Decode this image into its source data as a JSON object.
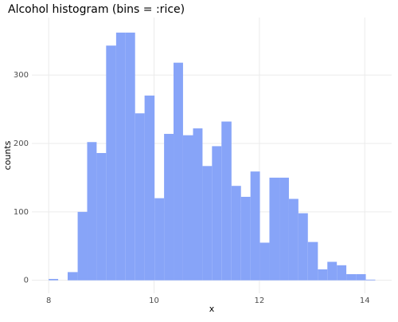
{
  "chart_data": {
    "type": "histogram",
    "title": "Alcohol histogram (bins = :rice)",
    "x_label": "x",
    "y_label": "counts",
    "bins": [
      8.0,
      8.18,
      8.36,
      8.55,
      8.73,
      8.91,
      9.09,
      9.28,
      9.46,
      9.64,
      9.82,
      10.01,
      10.19,
      10.37,
      10.55,
      10.74,
      10.92,
      11.1,
      11.28,
      11.47,
      11.65,
      11.83,
      12.01,
      12.19,
      12.38,
      12.56,
      12.74,
      12.92,
      13.11,
      13.29,
      13.47,
      13.65,
      13.84,
      14.02,
      14.2
    ],
    "values": [
      2,
      0,
      12,
      100,
      202,
      186,
      343,
      362,
      362,
      244,
      270,
      120,
      214,
      318,
      212,
      222,
      167,
      196,
      232,
      138,
      122,
      159,
      55,
      150,
      150,
      119,
      98,
      56,
      16,
      27,
      22,
      9,
      9,
      1
    ],
    "color": "#87a4f8",
    "xlim": [
      7.68,
      14.51
    ],
    "xticks": [
      8,
      10,
      12,
      14
    ],
    "ylim": [
      -19,
      384
    ],
    "yticks": [
      0,
      100,
      200,
      300
    ],
    "grid": true
  }
}
